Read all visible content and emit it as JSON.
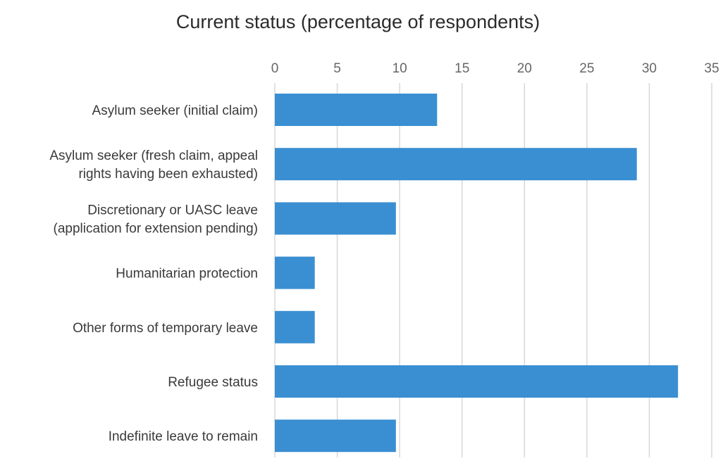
{
  "chart_data": {
    "type": "bar",
    "orientation": "horizontal",
    "title": "Current status (percentage of respondents)",
    "xlabel": "",
    "ylabel": "",
    "xlim": [
      0,
      35
    ],
    "x_ticks": [
      "0",
      "5",
      "10",
      "15",
      "20",
      "25",
      "30",
      "35"
    ],
    "grid": true,
    "categories": [
      [
        "Asylum seeker (initial claim)"
      ],
      [
        "Asylum seeker (fresh claim, appeal",
        "rights having been exhausted)"
      ],
      [
        "Discretionary or UASC leave",
        "(application for extension pending)"
      ],
      [
        "Humanitarian protection"
      ],
      [
        "Other forms of temporary leave"
      ],
      [
        "Refugee status"
      ],
      [
        "Indefinite leave to remain"
      ]
    ],
    "values": [
      13,
      29,
      9.7,
      3.2,
      3.2,
      32.3,
      9.7
    ],
    "bar_color": "#3a8fd2",
    "grid_color": "#d8d8d8"
  }
}
